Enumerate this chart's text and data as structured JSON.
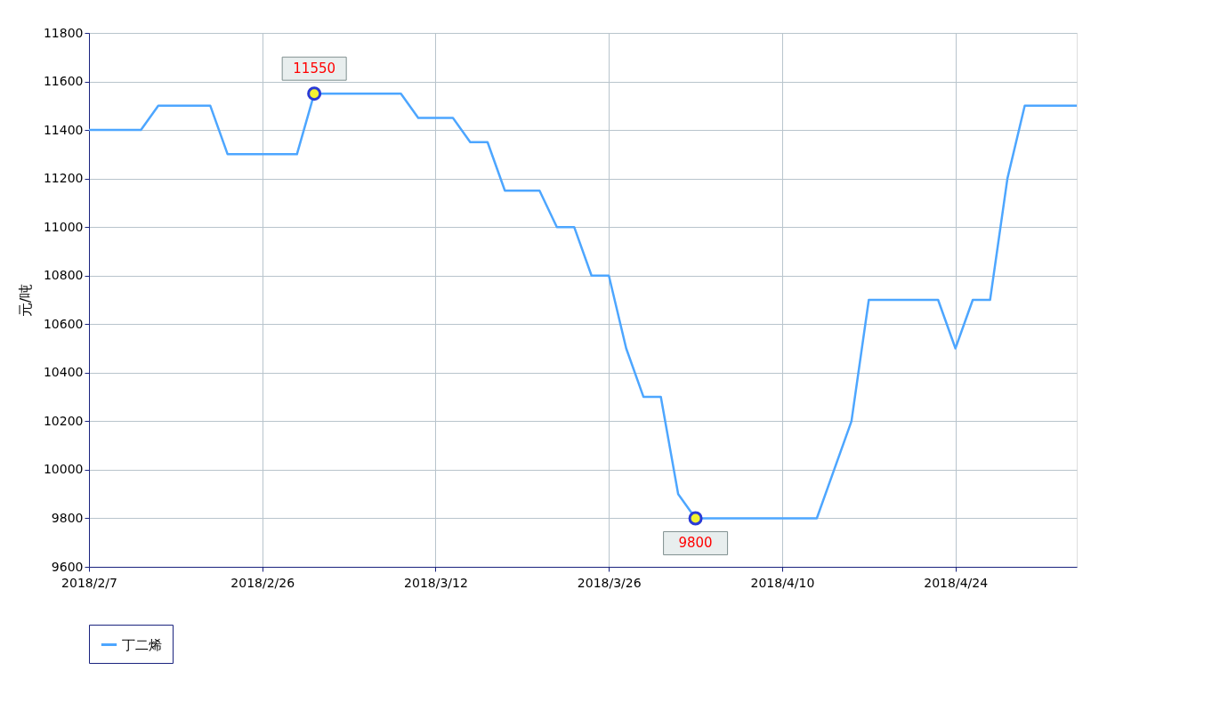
{
  "chart_data": {
    "type": "line",
    "ylabel": "元/吨",
    "categories": [
      "2018/2/7",
      null,
      null,
      null,
      null,
      null,
      null,
      null,
      null,
      null,
      "2018/2/26",
      null,
      null,
      null,
      null,
      null,
      null,
      null,
      null,
      null,
      "2018/3/12",
      null,
      null,
      null,
      null,
      null,
      null,
      null,
      null,
      null,
      "2018/3/26",
      null,
      null,
      null,
      null,
      null,
      null,
      null,
      null,
      null,
      "2018/4/10",
      null,
      null,
      null,
      null,
      null,
      null,
      null,
      null,
      null,
      "2018/4/24",
      null,
      null,
      null,
      null,
      null,
      null,
      null
    ],
    "series": [
      {
        "name": "丁二烯",
        "color": "#4da6ff",
        "values": [
          11400,
          11400,
          11400,
          11400,
          11500,
          11500,
          11500,
          11500,
          11300,
          11300,
          11300,
          11300,
          11300,
          11550,
          11550,
          11550,
          11550,
          11550,
          11550,
          11450,
          11450,
          11450,
          11350,
          11350,
          11150,
          11150,
          11150,
          11000,
          11000,
          10800,
          10800,
          10500,
          10300,
          10300,
          9900,
          9800,
          9800,
          9800,
          9800,
          9800,
          9800,
          9800,
          9800,
          10000,
          10200,
          10700,
          10700,
          10700,
          10700,
          10700,
          10500,
          10700,
          10700,
          11200,
          11500,
          11500,
          11500,
          11500
        ]
      }
    ],
    "annotations": [
      {
        "text": "11550",
        "y": 11550
      },
      {
        "text": "9800",
        "y": 9800
      }
    ],
    "ylim": [
      9600,
      11800
    ],
    "yticks": [
      9600,
      9800,
      10000,
      10200,
      10400,
      10600,
      10800,
      11000,
      11200,
      11400,
      11600,
      11800
    ],
    "grid": true,
    "legend": "bottom",
    "marker": "none",
    "line_style": "solid"
  }
}
